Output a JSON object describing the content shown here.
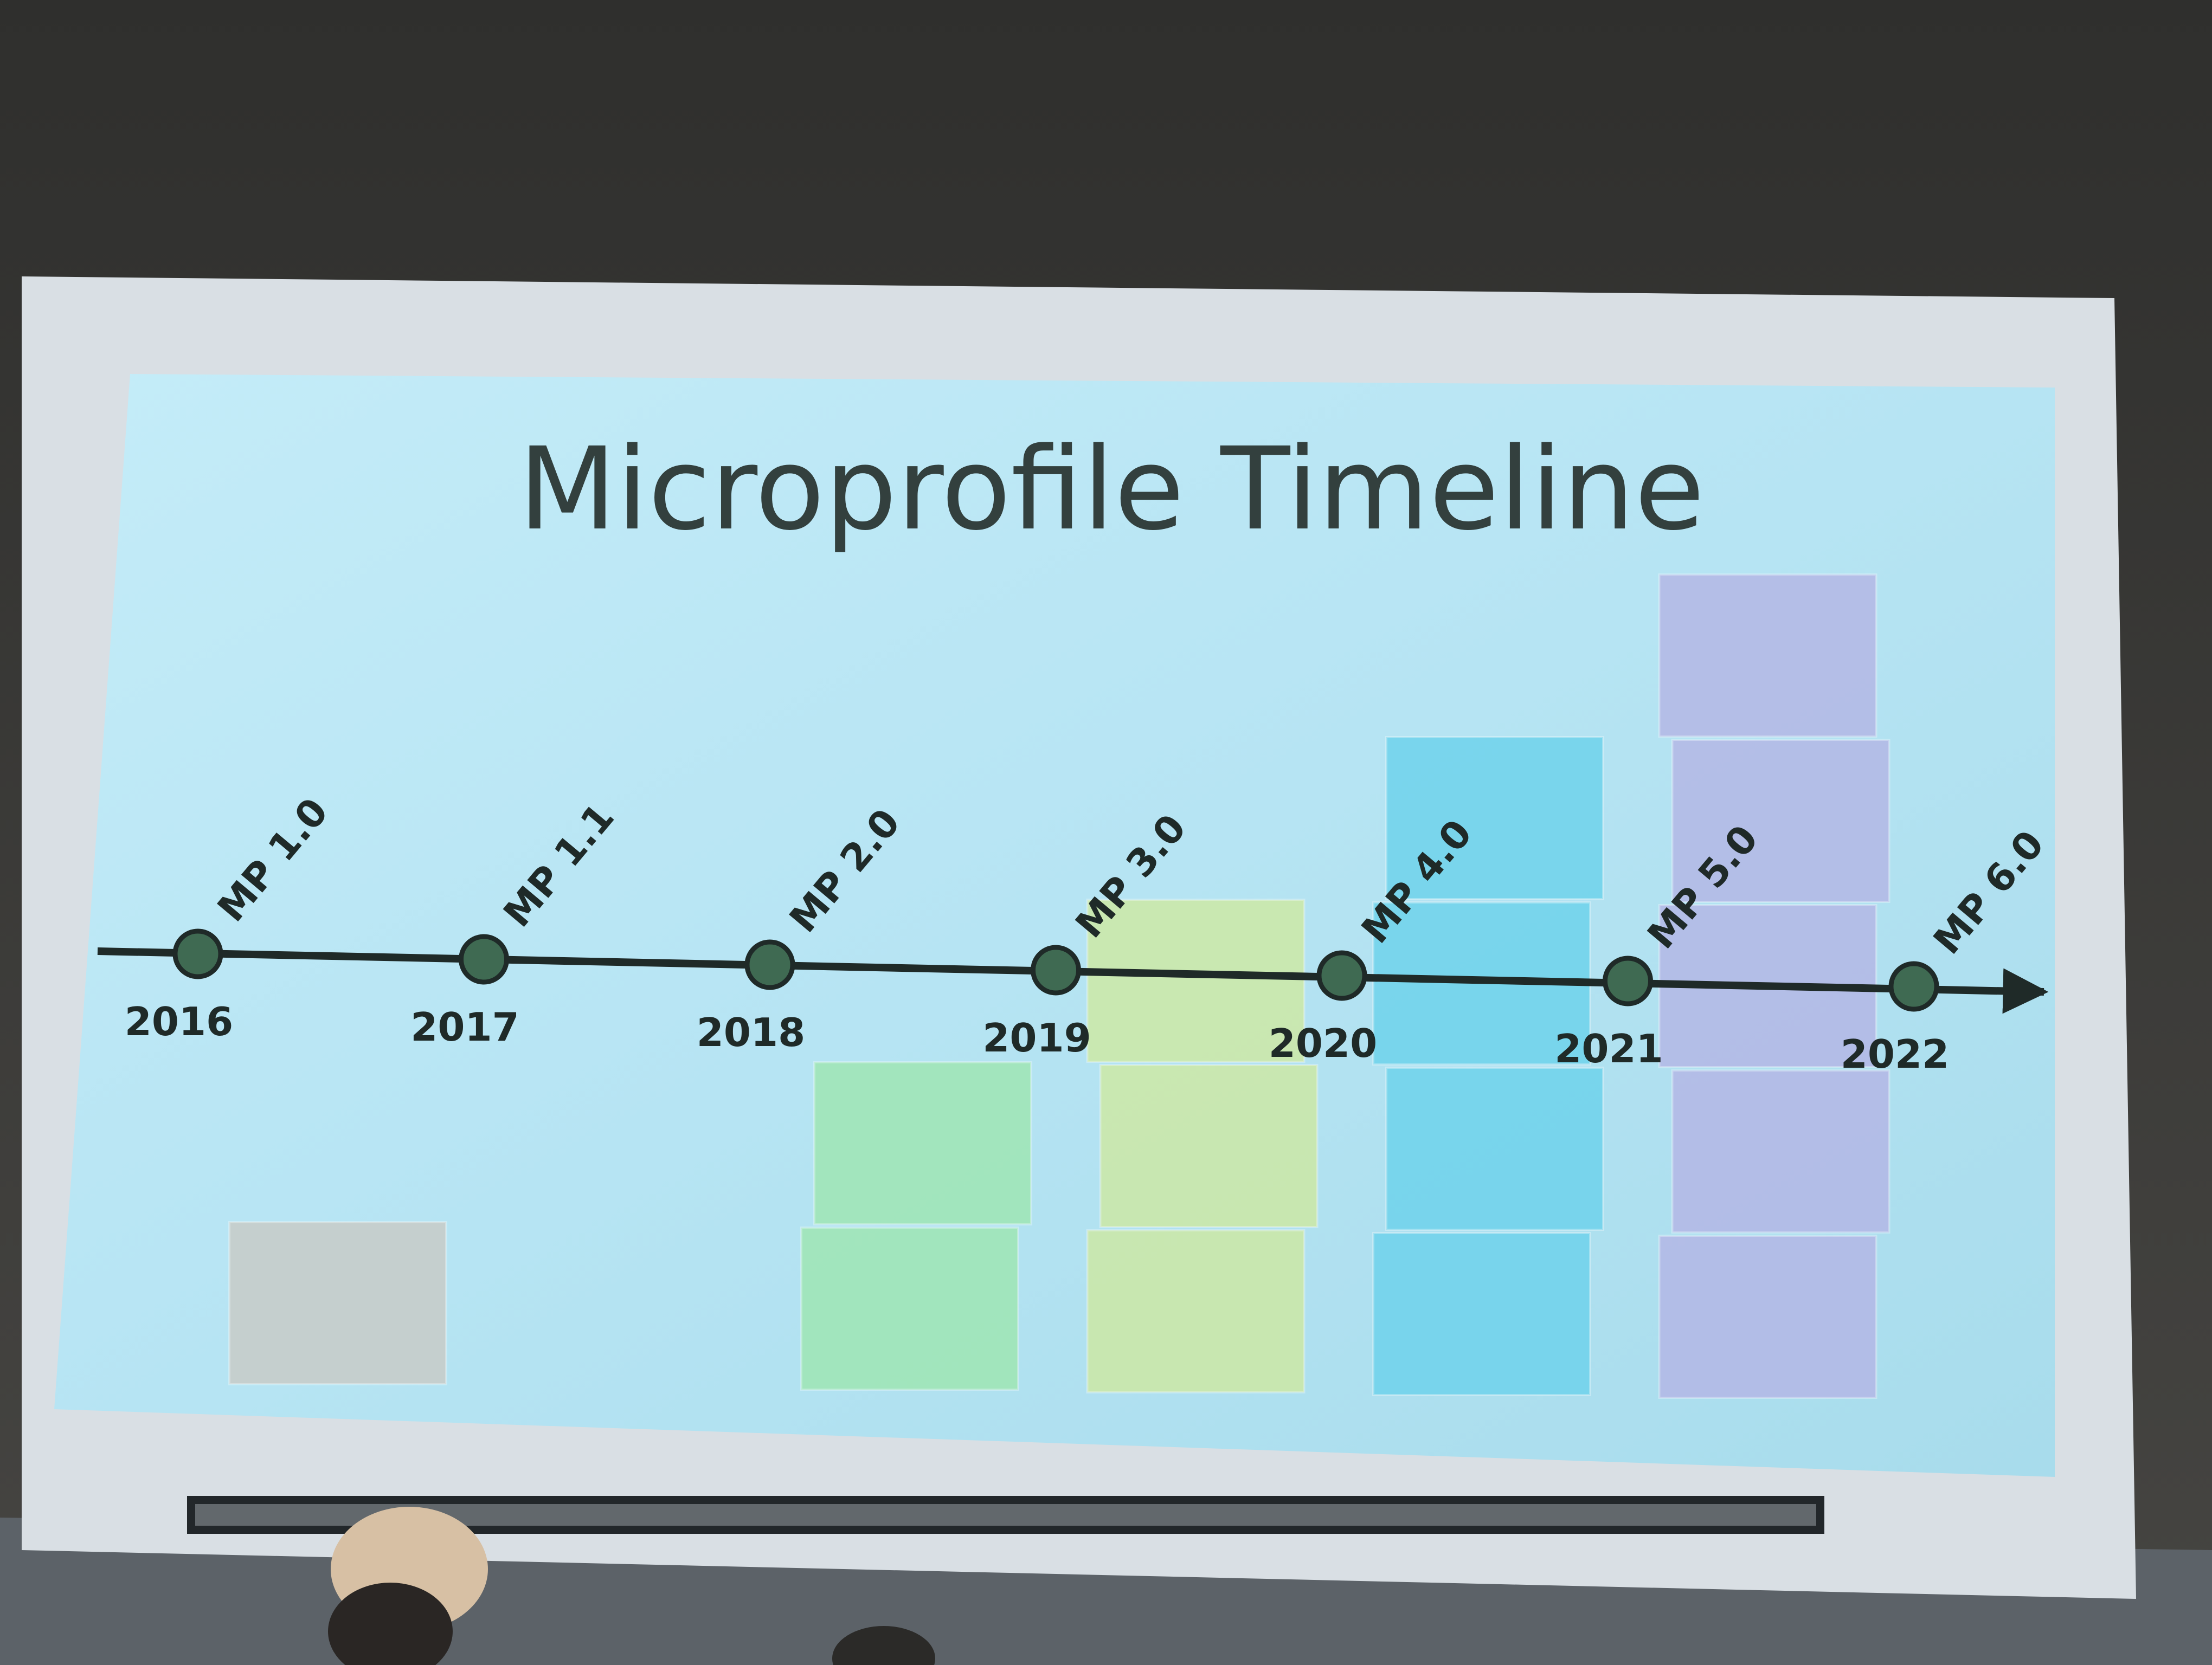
{
  "slide": {
    "title": "Microprofile Timeline",
    "milestones": [
      {
        "release": "MP 1.0",
        "year": "2016",
        "stack_blocks": 1,
        "block_color": "#c8ccc8"
      },
      {
        "release": "MP 1.1",
        "year": "2017",
        "stack_blocks": 0,
        "block_color": ""
      },
      {
        "release": "MP 2.0",
        "year": "2018",
        "stack_blocks": 2,
        "block_color": "#9fe6b4"
      },
      {
        "release": "MP 3.0",
        "year": "2019",
        "stack_blocks": 3,
        "block_color": "#cde9a6"
      },
      {
        "release": "MP 4.0",
        "year": "2020",
        "stack_blocks": 4,
        "block_color": "#6fd3ec"
      },
      {
        "release": "MP 5.0",
        "year": "2021",
        "stack_blocks": 5,
        "block_color": "#b4b8e6"
      },
      {
        "release": "MP 6.0",
        "year": "2022",
        "stack_blocks": 0,
        "block_color": ""
      }
    ]
  },
  "colors": {
    "wall": "#3a3a38",
    "screen_frame": "#d9dfe4",
    "slide_background": "#b8e6f4",
    "title_text": "#33403e",
    "node_fill": "#3f6a52",
    "axis_line": "#1f2a28",
    "stage_floor": "#5c6268"
  }
}
